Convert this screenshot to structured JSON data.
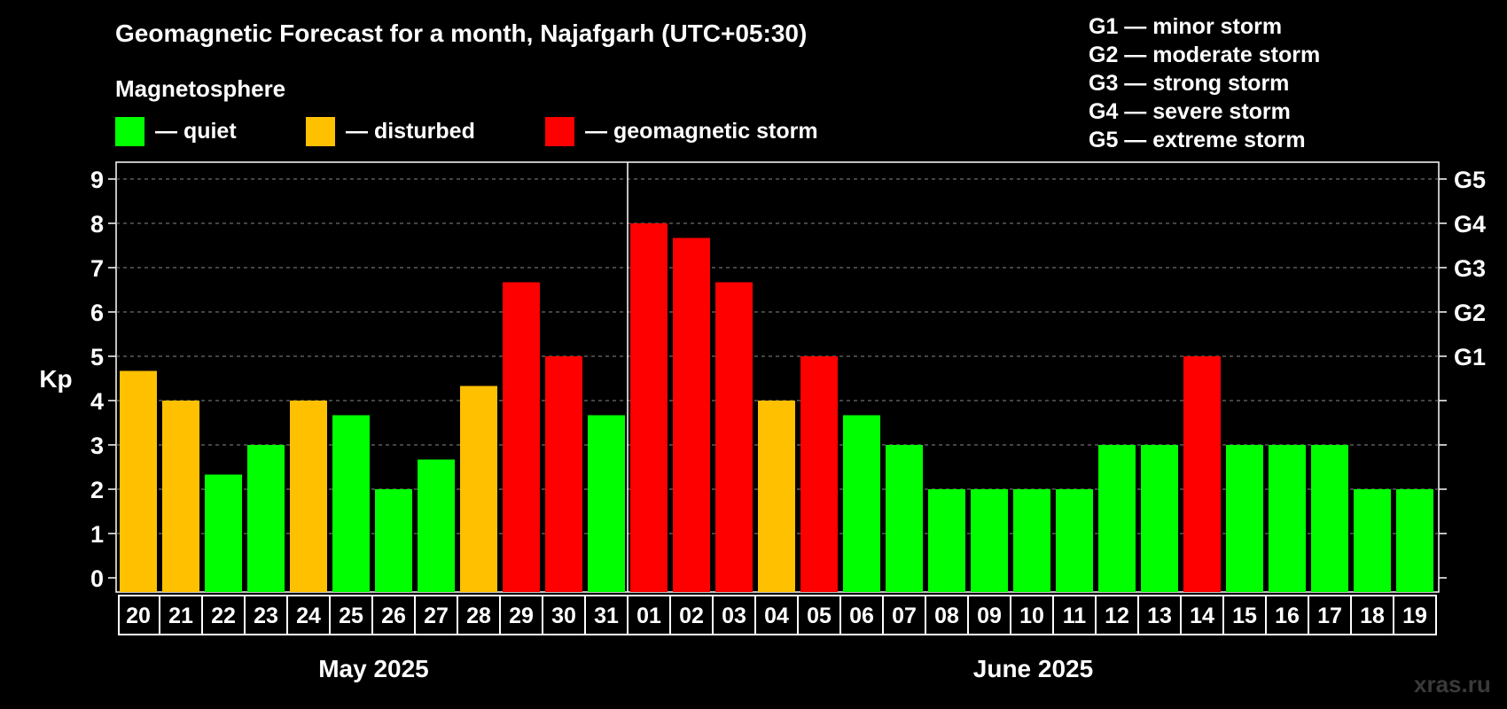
{
  "chart_data": {
    "type": "bar",
    "title": "Geomagnetic Forecast for a month, Najafgarh (UTC+05:30)",
    "subtitle": "Magnetosphere",
    "ylabel": "Kp",
    "ylim": [
      0,
      9
    ],
    "y_ticks": [
      "0",
      "1",
      "2",
      "3",
      "4",
      "5",
      "6",
      "7",
      "8",
      "9"
    ],
    "grid": true,
    "legend": [
      {
        "label": "— quiet",
        "color": "#00ff00"
      },
      {
        "label": "— disturbed",
        "color": "#ffc000"
      },
      {
        "label": "— geomagnetic storm",
        "color": "#ff0000"
      }
    ],
    "storm_scale": [
      "G1 — minor storm",
      "G2 — moderate storm",
      "G3 — strong storm",
      "G4 — severe storm",
      "G5 — extreme storm"
    ],
    "right_axis_labels": [
      {
        "kp": 5,
        "label": "G1"
      },
      {
        "kp": 6,
        "label": "G2"
      },
      {
        "kp": 7,
        "label": "G3"
      },
      {
        "kp": 8,
        "label": "G4"
      },
      {
        "kp": 9,
        "label": "G5"
      }
    ],
    "month_labels": [
      "May 2025",
      "June 2025"
    ],
    "categories": [
      "20",
      "21",
      "22",
      "23",
      "24",
      "25",
      "26",
      "27",
      "28",
      "29",
      "30",
      "31",
      "01",
      "02",
      "03",
      "04",
      "05",
      "06",
      "07",
      "08",
      "09",
      "10",
      "11",
      "12",
      "13",
      "14",
      "15",
      "16",
      "17",
      "18",
      "19"
    ],
    "values": [
      4.67,
      4.0,
      2.33,
      3.0,
      4.0,
      3.67,
      2.0,
      2.67,
      4.33,
      6.67,
      5.0,
      3.67,
      8.0,
      7.67,
      6.67,
      4.0,
      5.0,
      3.67,
      3.0,
      2.0,
      2.0,
      2.0,
      2.0,
      3.0,
      3.0,
      5.0,
      3.0,
      3.0,
      3.0,
      2.0,
      2.0
    ],
    "levels": [
      "disturbed",
      "disturbed",
      "quiet",
      "quiet",
      "disturbed",
      "quiet",
      "quiet",
      "quiet",
      "disturbed",
      "storm",
      "storm",
      "quiet",
      "storm",
      "storm",
      "storm",
      "disturbed",
      "storm",
      "quiet",
      "quiet",
      "quiet",
      "quiet",
      "quiet",
      "quiet",
      "quiet",
      "quiet",
      "storm",
      "quiet",
      "quiet",
      "quiet",
      "quiet",
      "quiet"
    ]
  },
  "colors": {
    "quiet": "#00ff00",
    "disturbed": "#ffc000",
    "storm": "#ff0000",
    "background": "#000000",
    "grid": "#888888"
  },
  "watermark": "xras.ru"
}
